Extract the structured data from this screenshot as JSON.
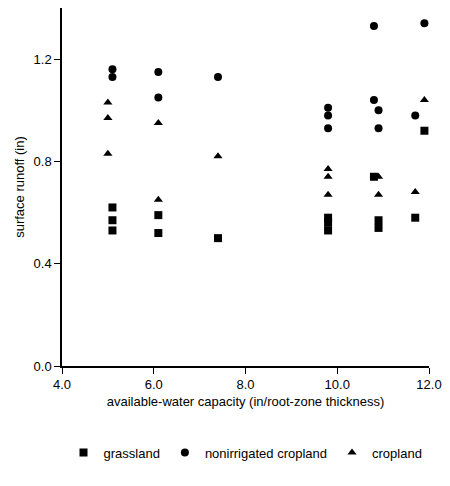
{
  "chart_data": {
    "type": "scatter",
    "x_label": "available-water capacity (in/root-zone thickness)",
    "y_label": "surface runoff (in)",
    "xlim": [
      4,
      12
    ],
    "xticks": [
      {
        "value": 4,
        "label": "4.0"
      },
      {
        "value": 6,
        "label": "6.0"
      },
      {
        "value": 8,
        "label": "8.0"
      },
      {
        "value": 10,
        "label": "10.0"
      },
      {
        "value": 12,
        "label": "12.0"
      }
    ],
    "ylim": [
      0,
      1.4
    ],
    "yticks": [
      {
        "value": 0,
        "label": "0.0"
      },
      {
        "value": 0.4,
        "label": "0.4"
      },
      {
        "value": 0.8,
        "label": "0.8"
      },
      {
        "value": 1.2,
        "label": "1.2"
      }
    ],
    "grid": false,
    "legend": "bottom",
    "series": [
      {
        "name": "grassland",
        "color": "#000000",
        "marker": "square",
        "x": [
          5.1,
          5.1,
          5.1,
          6.1,
          6.1,
          7.4,
          9.8,
          9.8,
          9.8,
          10.9,
          10.9,
          10.8,
          11.7,
          11.9
        ],
        "values": [
          0.62,
          0.57,
          0.53,
          0.59,
          0.52,
          0.5,
          0.58,
          0.56,
          0.53,
          0.57,
          0.54,
          0.74,
          0.58,
          0.92
        ]
      },
      {
        "name": "nonirrigated cropland",
        "color": "#000000",
        "marker": "circle",
        "x": [
          5.1,
          5.1,
          6.1,
          6.1,
          7.4,
          9.8,
          9.8,
          9.8,
          10.9,
          10.9,
          10.8,
          10.8,
          11.7,
          11.9
        ],
        "values": [
          1.16,
          1.13,
          1.15,
          1.05,
          1.13,
          1.01,
          0.98,
          0.93,
          1.0,
          0.93,
          1.33,
          1.04,
          0.98,
          1.34
        ]
      },
      {
        "name": "cropland",
        "color": "#000000",
        "marker": "triangle-up",
        "x": [
          5.0,
          5.0,
          5.0,
          6.1,
          6.1,
          7.4,
          9.8,
          9.8,
          9.8,
          10.9,
          10.9,
          11.7,
          11.9
        ],
        "values": [
          1.03,
          0.97,
          0.83,
          0.95,
          0.65,
          0.82,
          0.77,
          0.74,
          0.67,
          0.74,
          0.67,
          0.68,
          1.04
        ]
      }
    ]
  }
}
